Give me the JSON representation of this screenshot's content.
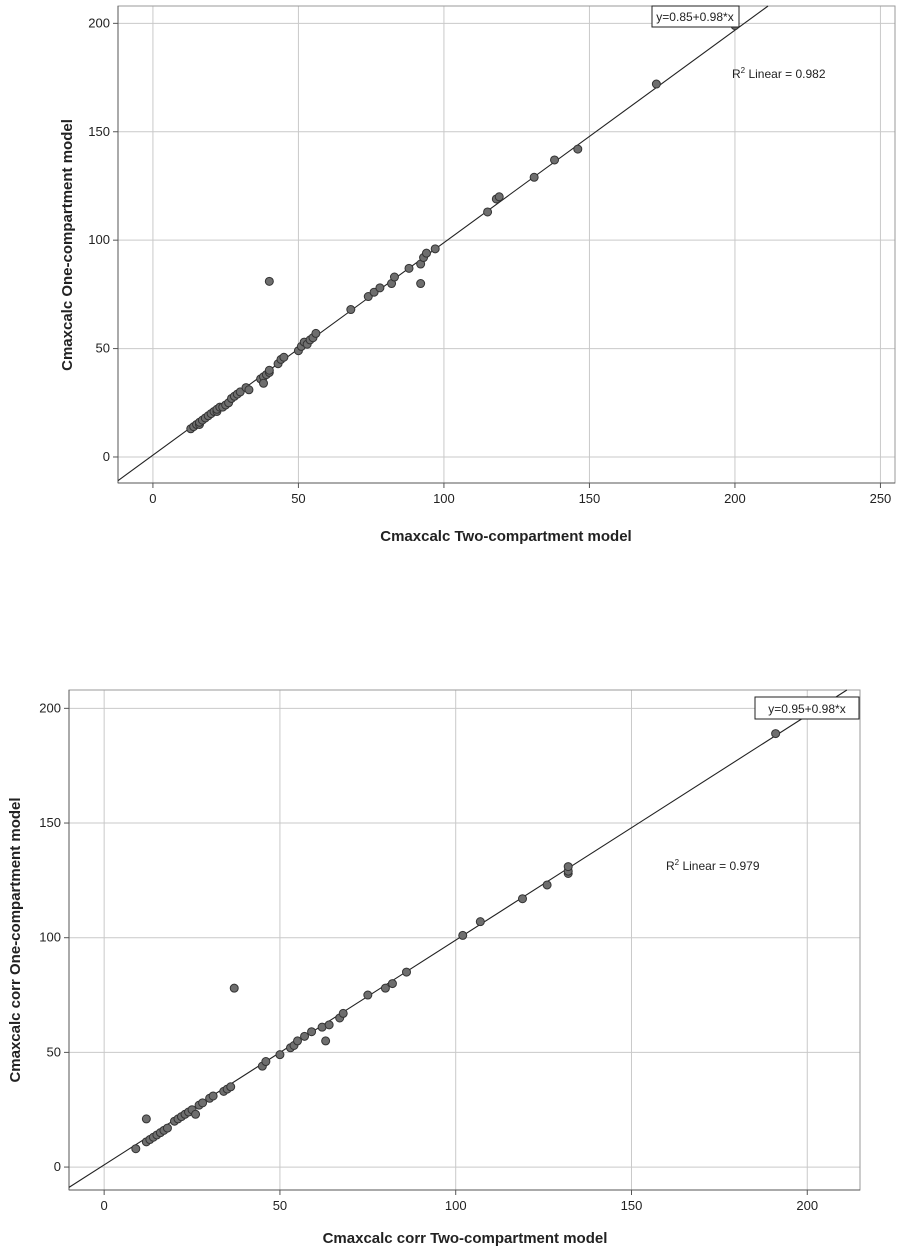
{
  "chart_data": [
    {
      "type": "scatter",
      "xlabel": "Cmaxcalc Two-compartment model",
      "ylabel": "Cmaxcalc One-compartment model",
      "xlim": [
        -12,
        255
      ],
      "ylim": [
        -12,
        208
      ],
      "xticks": [
        0,
        50,
        100,
        150,
        200,
        250
      ],
      "yticks": [
        0,
        50,
        100,
        150,
        200
      ],
      "grid": true,
      "fit": {
        "intercept": 0.85,
        "slope": 0.98,
        "label": "y=0.85+0.98*x"
      },
      "r2_prefix": "R",
      "r2_sup": "2",
      "r2_text": " Linear = 0.982",
      "points": [
        [
          13,
          13
        ],
        [
          14,
          14
        ],
        [
          15,
          15
        ],
        [
          16,
          15
        ],
        [
          16,
          16
        ],
        [
          17,
          17
        ],
        [
          18,
          18
        ],
        [
          19,
          19
        ],
        [
          20,
          20
        ],
        [
          21,
          21
        ],
        [
          22,
          21
        ],
        [
          22,
          22
        ],
        [
          23,
          23
        ],
        [
          24,
          23
        ],
        [
          25,
          24
        ],
        [
          26,
          25
        ],
        [
          27,
          27
        ],
        [
          28,
          28
        ],
        [
          29,
          29
        ],
        [
          30,
          30
        ],
        [
          32,
          32
        ],
        [
          33,
          31
        ],
        [
          37,
          36
        ],
        [
          38,
          37
        ],
        [
          38,
          34
        ],
        [
          39,
          38
        ],
        [
          40,
          39
        ],
        [
          40,
          40
        ],
        [
          40,
          81
        ],
        [
          43,
          43
        ],
        [
          44,
          45
        ],
        [
          45,
          46
        ],
        [
          50,
          49
        ],
        [
          51,
          51
        ],
        [
          52,
          53
        ],
        [
          53,
          52
        ],
        [
          54,
          54
        ],
        [
          55,
          55
        ],
        [
          56,
          57
        ],
        [
          68,
          68
        ],
        [
          74,
          74
        ],
        [
          76,
          76
        ],
        [
          78,
          78
        ],
        [
          82,
          80
        ],
        [
          83,
          83
        ],
        [
          88,
          87
        ],
        [
          92,
          89
        ],
        [
          92,
          80
        ],
        [
          93,
          92
        ],
        [
          94,
          94
        ],
        [
          97,
          96
        ],
        [
          115,
          113
        ],
        [
          118,
          119
        ],
        [
          119,
          120
        ],
        [
          131,
          129
        ],
        [
          138,
          137
        ],
        [
          146,
          142
        ],
        [
          173,
          172
        ],
        [
          200,
          199
        ]
      ]
    },
    {
      "type": "scatter",
      "xlabel": "Cmaxcalc corr Two-compartment model",
      "ylabel": "Cmaxcalc corr One-compartment model",
      "xlim": [
        -10,
        215
      ],
      "ylim": [
        -10,
        208
      ],
      "xticks": [
        0,
        50,
        100,
        150,
        200
      ],
      "yticks": [
        0,
        50,
        100,
        150,
        200
      ],
      "grid": true,
      "fit": {
        "intercept": 0.95,
        "slope": 0.98,
        "label": "y=0.95+0.98*x"
      },
      "r2_prefix": "R",
      "r2_sup": "2",
      "r2_text": " Linear = 0.979",
      "points": [
        [
          9,
          8
        ],
        [
          12,
          21
        ],
        [
          12,
          11
        ],
        [
          13,
          12
        ],
        [
          14,
          13
        ],
        [
          15,
          14
        ],
        [
          16,
          15
        ],
        [
          17,
          16
        ],
        [
          18,
          17
        ],
        [
          20,
          20
        ],
        [
          21,
          21
        ],
        [
          22,
          22
        ],
        [
          23,
          23
        ],
        [
          24,
          24
        ],
        [
          25,
          25
        ],
        [
          26,
          23
        ],
        [
          27,
          27
        ],
        [
          28,
          28
        ],
        [
          30,
          30
        ],
        [
          31,
          31
        ],
        [
          34,
          33
        ],
        [
          35,
          34
        ],
        [
          36,
          35
        ],
        [
          37,
          78
        ],
        [
          45,
          44
        ],
        [
          46,
          46
        ],
        [
          50,
          49
        ],
        [
          53,
          52
        ],
        [
          54,
          53
        ],
        [
          55,
          55
        ],
        [
          57,
          57
        ],
        [
          59,
          59
        ],
        [
          62,
          61
        ],
        [
          63,
          55
        ],
        [
          64,
          62
        ],
        [
          67,
          65
        ],
        [
          68,
          67
        ],
        [
          75,
          75
        ],
        [
          80,
          78
        ],
        [
          82,
          80
        ],
        [
          86,
          85
        ],
        [
          102,
          101
        ],
        [
          107,
          107
        ],
        [
          119,
          117
        ],
        [
          126,
          123
        ],
        [
          132,
          128
        ],
        [
          132,
          129
        ],
        [
          132,
          131
        ],
        [
          191,
          189
        ]
      ]
    }
  ]
}
